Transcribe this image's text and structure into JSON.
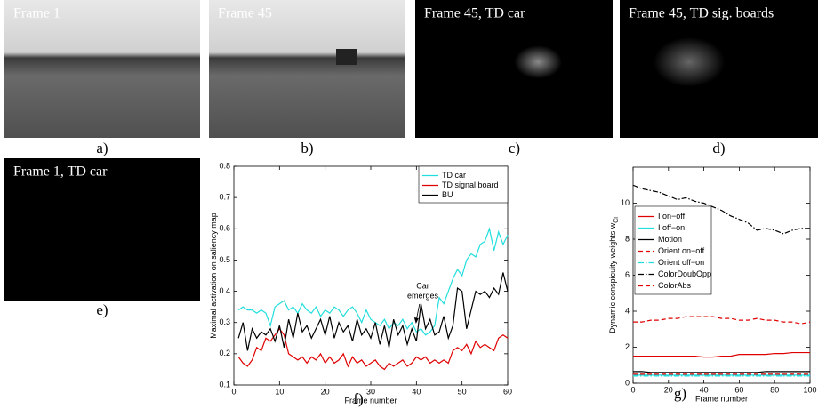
{
  "panels": [
    {
      "label": "Frame 1",
      "caption": "a)"
    },
    {
      "label": "Frame 45",
      "caption": "b)"
    },
    {
      "label": "Frame 45, TD car",
      "caption": "c)"
    },
    {
      "label": "Frame 45, TD sig. boards",
      "caption": "d)"
    },
    {
      "label": "Frame 1, TD car",
      "caption": "e)"
    }
  ],
  "chart_data": [
    {
      "type": "line",
      "caption": "f)",
      "xlabel": "Frame number",
      "ylabel": "Maximal activation on saliency map",
      "annotation": [
        "Car",
        "emerges"
      ],
      "xlim": [
        0,
        60
      ],
      "xticks": [
        0,
        10,
        20,
        30,
        40,
        50,
        60
      ],
      "ylim": [
        0.1,
        0.8
      ],
      "yticks": [
        0.1,
        0.2,
        0.3,
        0.4,
        0.5,
        0.6,
        0.7,
        0.8
      ],
      "legend": "upper-right",
      "x": [
        1,
        2,
        3,
        4,
        5,
        6,
        7,
        8,
        9,
        10,
        11,
        12,
        13,
        14,
        15,
        16,
        17,
        18,
        19,
        20,
        21,
        22,
        23,
        24,
        25,
        26,
        27,
        28,
        29,
        30,
        31,
        32,
        33,
        34,
        35,
        36,
        37,
        38,
        39,
        40,
        41,
        42,
        43,
        44,
        45,
        46,
        47,
        48,
        49,
        50,
        51,
        52,
        53,
        54,
        55,
        56,
        57,
        58,
        59,
        60
      ],
      "series": [
        {
          "name": "TD car",
          "color": "#22dede",
          "dash": "solid",
          "values": [
            0.34,
            0.35,
            0.34,
            0.34,
            0.33,
            0.34,
            0.33,
            0.29,
            0.35,
            0.36,
            0.37,
            0.34,
            0.35,
            0.33,
            0.36,
            0.34,
            0.33,
            0.35,
            0.32,
            0.34,
            0.33,
            0.35,
            0.34,
            0.32,
            0.34,
            0.35,
            0.33,
            0.3,
            0.34,
            0.31,
            0.3,
            0.29,
            0.31,
            0.28,
            0.3,
            0.29,
            0.31,
            0.28,
            0.3,
            0.27,
            0.28,
            0.26,
            0.27,
            0.29,
            0.38,
            0.36,
            0.4,
            0.44,
            0.47,
            0.45,
            0.5,
            0.52,
            0.51,
            0.55,
            0.56,
            0.6,
            0.53,
            0.59,
            0.55,
            0.58
          ]
        },
        {
          "name": "TD signal board",
          "color": "#e00000",
          "dash": "solid",
          "values": [
            0.19,
            0.17,
            0.16,
            0.18,
            0.22,
            0.21,
            0.25,
            0.24,
            0.26,
            0.28,
            0.26,
            0.2,
            0.19,
            0.18,
            0.19,
            0.17,
            0.19,
            0.18,
            0.2,
            0.17,
            0.19,
            0.17,
            0.18,
            0.2,
            0.16,
            0.19,
            0.17,
            0.18,
            0.16,
            0.17,
            0.18,
            0.16,
            0.15,
            0.17,
            0.16,
            0.17,
            0.18,
            0.16,
            0.17,
            0.19,
            0.18,
            0.19,
            0.17,
            0.18,
            0.17,
            0.18,
            0.17,
            0.21,
            0.22,
            0.21,
            0.23,
            0.2,
            0.24,
            0.22,
            0.23,
            0.22,
            0.21,
            0.25,
            0.26,
            0.25
          ]
        },
        {
          "name": "BU",
          "color": "#000000",
          "dash": "solid",
          "values": [
            0.25,
            0.3,
            0.21,
            0.28,
            0.25,
            0.27,
            0.26,
            0.28,
            0.24,
            0.29,
            0.22,
            0.31,
            0.25,
            0.33,
            0.27,
            0.29,
            0.25,
            0.28,
            0.31,
            0.26,
            0.32,
            0.25,
            0.3,
            0.27,
            0.29,
            0.24,
            0.31,
            0.26,
            0.28,
            0.25,
            0.3,
            0.23,
            0.29,
            0.22,
            0.31,
            0.26,
            0.29,
            0.23,
            0.28,
            0.24,
            0.36,
            0.28,
            0.31,
            0.26,
            0.27,
            0.32,
            0.25,
            0.29,
            0.41,
            0.4,
            0.28,
            0.34,
            0.4,
            0.39,
            0.4,
            0.38,
            0.41,
            0.39,
            0.46,
            0.4
          ]
        }
      ]
    },
    {
      "type": "line",
      "caption": "g)",
      "xlabel": "Frame number",
      "ylabel": "Dynamic conspicuity weights w",
      "ylabel_subscript": "Ci",
      "xlim": [
        0,
        100
      ],
      "xticks": [
        0,
        20,
        40,
        60,
        80,
        100
      ],
      "ylim": [
        0,
        12
      ],
      "yticks": [
        0,
        2,
        4,
        6,
        8,
        10
      ],
      "legend": "upper-left",
      "x": [
        0,
        5,
        10,
        15,
        20,
        25,
        30,
        35,
        40,
        45,
        50,
        55,
        60,
        65,
        70,
        75,
        80,
        85,
        90,
        95,
        100
      ],
      "series": [
        {
          "name": "I on−off",
          "color": "#e00000",
          "dash": "solid",
          "values": [
            1.5,
            1.5,
            1.5,
            1.5,
            1.5,
            1.5,
            1.5,
            1.5,
            1.45,
            1.45,
            1.5,
            1.5,
            1.6,
            1.6,
            1.6,
            1.6,
            1.65,
            1.65,
            1.7,
            1.7,
            1.7
          ]
        },
        {
          "name": "I off−on",
          "color": "#22dede",
          "dash": "solid",
          "values": [
            0.45,
            0.45,
            0.45,
            0.45,
            0.45,
            0.45,
            0.45,
            0.45,
            0.45,
            0.45,
            0.45,
            0.45,
            0.45,
            0.45,
            0.45,
            0.45,
            0.45,
            0.45,
            0.45,
            0.45,
            0.45
          ]
        },
        {
          "name": "Motion",
          "color": "#000000",
          "dash": "solid",
          "values": [
            0.65,
            0.65,
            0.6,
            0.6,
            0.6,
            0.6,
            0.6,
            0.6,
            0.6,
            0.6,
            0.6,
            0.6,
            0.6,
            0.6,
            0.6,
            0.65,
            0.65,
            0.65,
            0.65,
            0.65,
            0.65
          ]
        },
        {
          "name": "Orient on−off",
          "color": "#e00000",
          "dash": "dashed",
          "values": [
            0.5,
            0.5,
            0.5,
            0.5,
            0.5,
            0.5,
            0.5,
            0.5,
            0.5,
            0.5,
            0.5,
            0.5,
            0.5,
            0.5,
            0.5,
            0.5,
            0.5,
            0.5,
            0.5,
            0.5,
            0.5
          ]
        },
        {
          "name": "Orient off−on",
          "color": "#22dede",
          "dash": "dashdot",
          "values": [
            0.4,
            0.4,
            0.4,
            0.4,
            0.4,
            0.4,
            0.4,
            0.4,
            0.4,
            0.4,
            0.4,
            0.4,
            0.4,
            0.4,
            0.4,
            0.4,
            0.4,
            0.4,
            0.4,
            0.4,
            0.4
          ]
        },
        {
          "name": "ColorDoubOpp",
          "color": "#000000",
          "dash": "dashdot",
          "values": [
            11.0,
            10.8,
            10.7,
            10.6,
            10.4,
            10.2,
            10.3,
            10.1,
            10.0,
            9.8,
            9.6,
            9.3,
            9.1,
            8.9,
            8.5,
            8.6,
            8.5,
            8.3,
            8.5,
            8.6,
            8.6
          ]
        },
        {
          "name": "ColorAbs",
          "color": "#e00000",
          "dash": "dashed",
          "values": [
            3.4,
            3.4,
            3.5,
            3.5,
            3.6,
            3.6,
            3.7,
            3.7,
            3.7,
            3.7,
            3.6,
            3.6,
            3.5,
            3.5,
            3.6,
            3.5,
            3.5,
            3.4,
            3.4,
            3.3,
            3.4
          ]
        }
      ]
    }
  ]
}
